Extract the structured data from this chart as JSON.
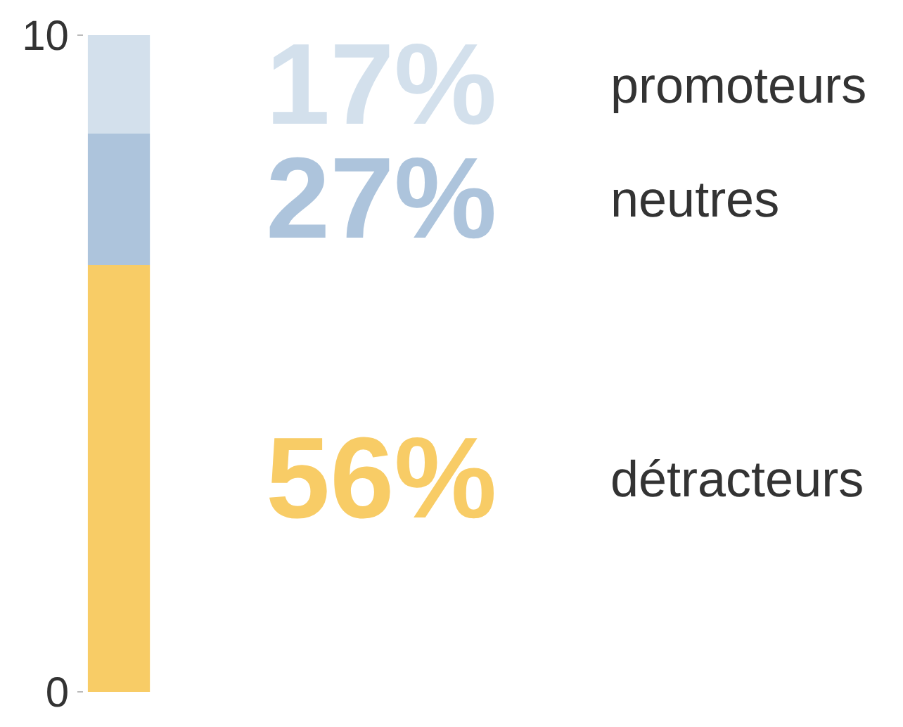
{
  "chart_data": {
    "type": "bar",
    "stacked": true,
    "categories": [
      null
    ],
    "ylim": [
      0,
      10
    ],
    "yticks": [
      0,
      10
    ],
    "tick_labels": "y",
    "legend": false,
    "annotations": [
      "17%",
      "27%",
      "56%"
    ],
    "series": [
      {
        "name": "détracteurs",
        "color": "#f8cc66",
        "values": [
          6.5
        ]
      },
      {
        "name": "neutres",
        "color": "#adc4dc",
        "values": [
          2
        ]
      },
      {
        "name": "promoteurs",
        "color": "#d3e0ec",
        "values": [
          1.5
        ]
      }
    ]
  }
}
